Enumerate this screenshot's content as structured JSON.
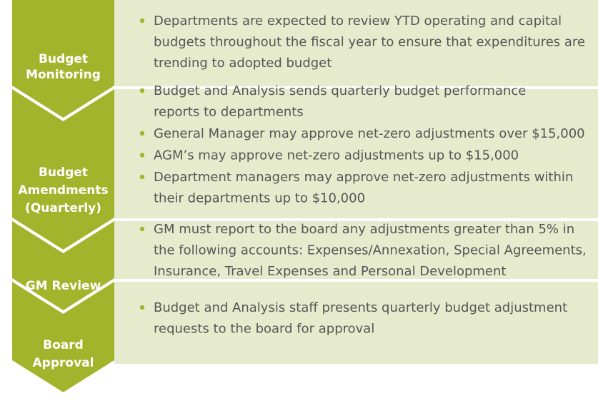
{
  "steps": [
    {
      "label": [
        "Budget",
        "Monitoring"
      ],
      "bullets": [
        [
          "Departments are expected to review YTD operating and capital",
          "budgets throughout the fiscal year to ensure that expenditures are",
          "trending to adopted budget"
        ]
      ]
    },
    {
      "label": [
        "Budget",
        "Amendments",
        "(Quarterly)"
      ],
      "bullets": [
        [
          "Budget and Analysis sends quarterly budget performance",
          "reports to departments"
        ],
        [
          "General Manager may approve net-zero adjustments over $15,000"
        ],
        [
          "AGM’s may approve net-zero adjustments up to $15,000"
        ],
        [
          "Department managers may approve net-zero adjustments within",
          "their departments up to $10,000"
        ]
      ]
    },
    {
      "label": [
        "GM Review"
      ],
      "bullets": [
        [
          "GM must report to the board any adjustments greater than 5% in",
          "the following accounts: Expenses/Annexation, Special Agreements,",
          "Insurance, Travel Expenses and Personal Development"
        ]
      ]
    },
    {
      "label": [
        "Board",
        "Approval"
      ],
      "bullets": [
        [
          "Budget and Analysis staff presents quarterly budget adjustment",
          "requests to the board for approval"
        ]
      ]
    }
  ]
}
